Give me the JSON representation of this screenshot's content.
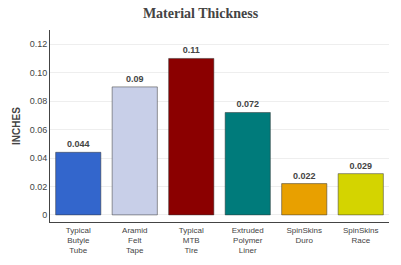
{
  "chart_data": {
    "type": "bar",
    "title": "Material Thickness",
    "ylabel": "INCHES",
    "categories": [
      "Typical\nButyle\nTube",
      "Aramid\nFelt\nTape",
      "Typical\nMTB\nTire",
      "Extruded\nPolymer\nLiner",
      "SpinSkins\nDuro",
      "SpinSkins\nRace"
    ],
    "values": [
      0.044,
      0.09,
      0.11,
      0.072,
      0.022,
      0.029
    ],
    "colors": [
      "#3366cc",
      "#c8cfe8",
      "#8b0000",
      "#007b7b",
      "#e8a000",
      "#d4d400"
    ],
    "ylim": [
      -0.005,
      0.13
    ],
    "yticks": [
      0,
      0.02,
      0.04,
      0.06,
      0.08,
      {
        "value": 0.1,
        "label": "0.10"
      },
      0.12
    ],
    "grid": true,
    "data_labels": true
  }
}
